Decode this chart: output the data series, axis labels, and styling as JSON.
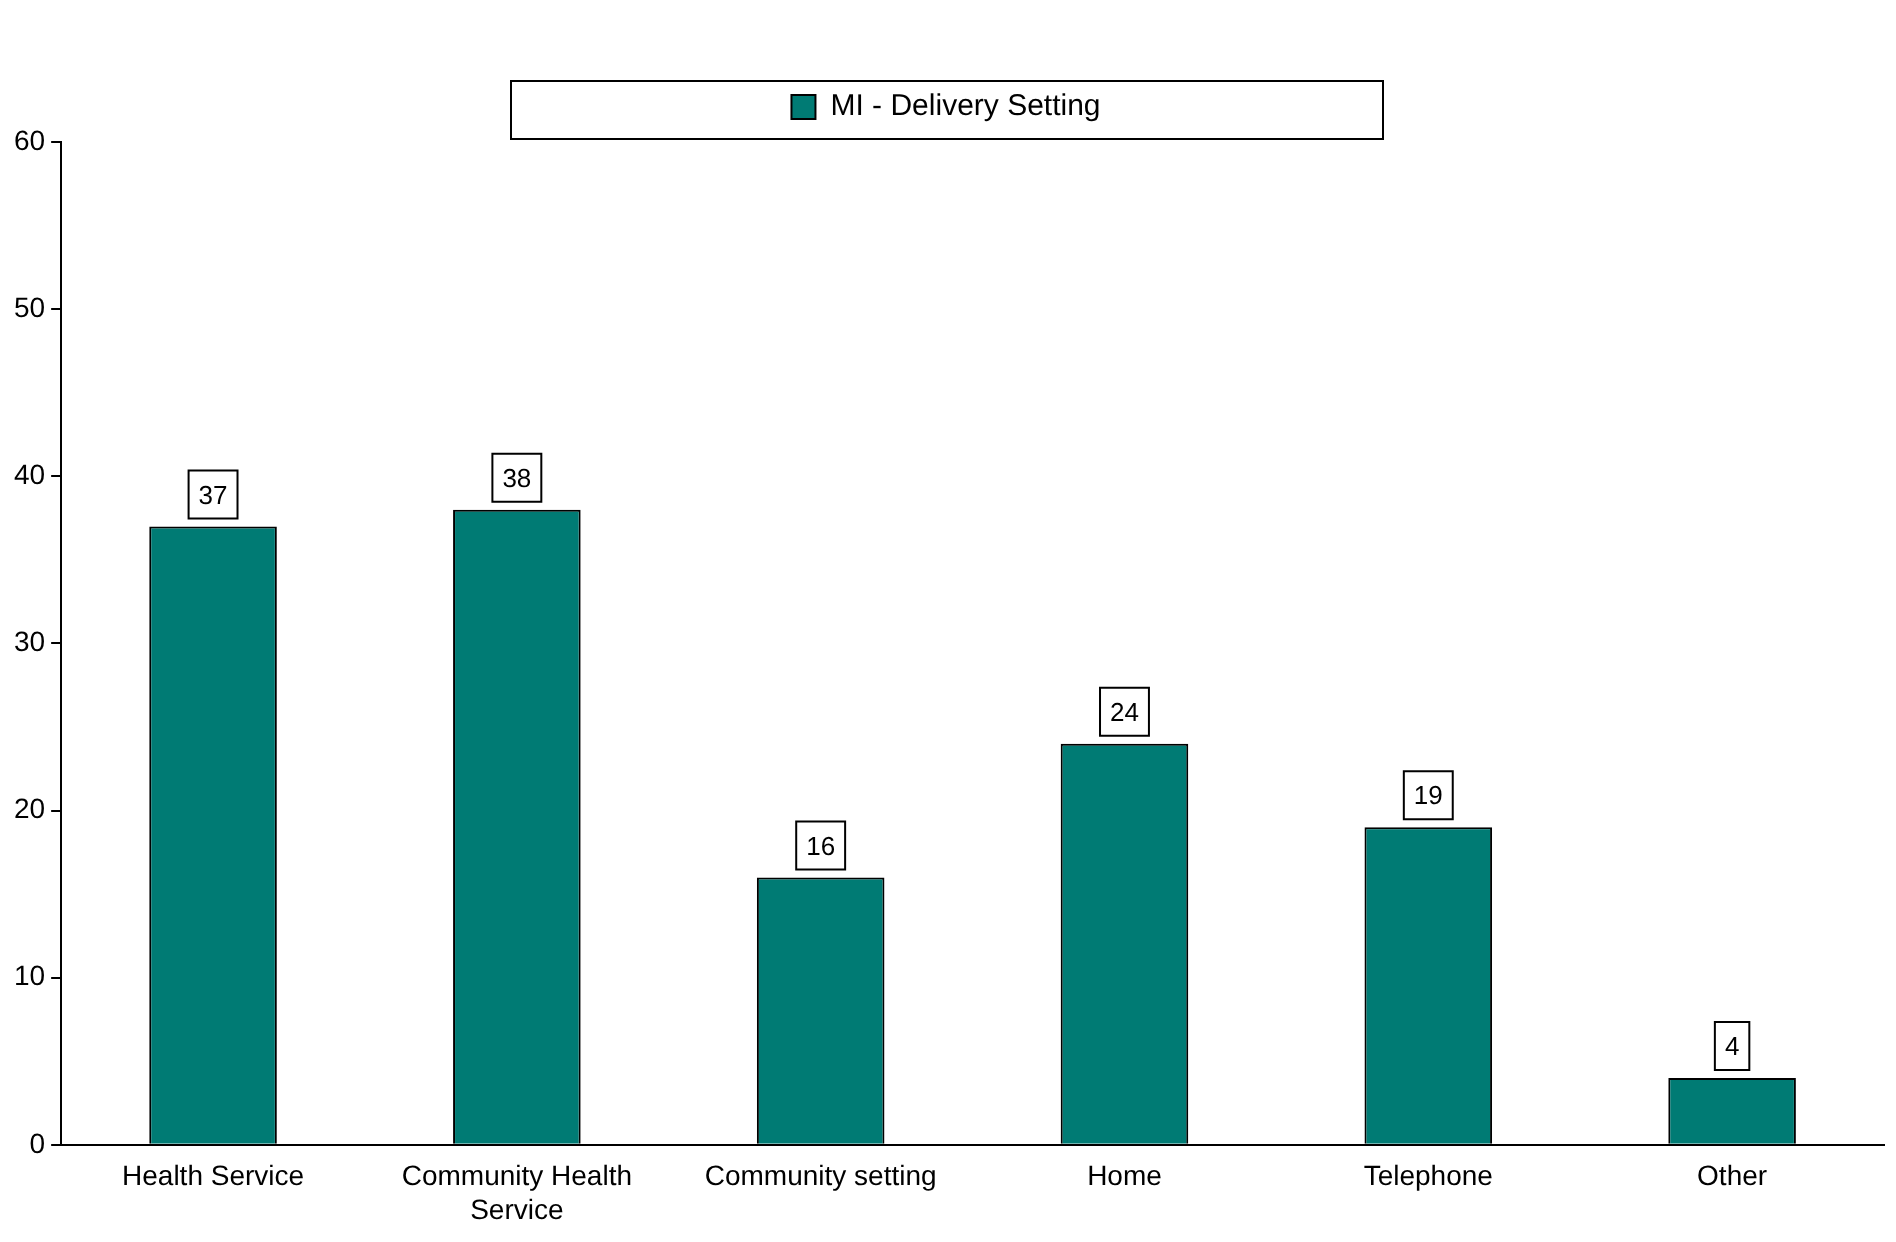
{
  "chart_data": {
    "type": "bar",
    "categories": [
      "Health Service",
      "Community Health Service",
      "Community setting",
      "Home",
      "Telephone",
      "Other"
    ],
    "series": [
      {
        "name": "MI - Delivery Setting",
        "color": "#007b74",
        "values": [
          37,
          38,
          16,
          24,
          19,
          4
        ]
      }
    ],
    "ylim": [
      0,
      60
    ],
    "yticks": [
      0,
      10,
      20,
      30,
      40,
      50,
      60
    ],
    "grid": false,
    "legend": "top",
    "data_labels": true
  }
}
